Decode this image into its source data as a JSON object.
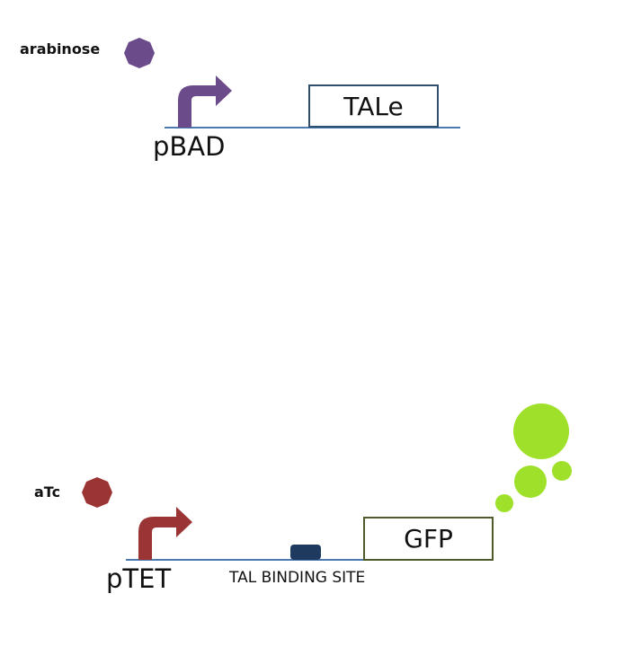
{
  "top_construct": {
    "inducer_label": "arabinose",
    "promoter_label": "pBAD",
    "gene_label": "TALe"
  },
  "bottom_construct": {
    "inducer_label": "aTc",
    "promoter_label": "pTET",
    "binding_site_label": "TAL BINDING SITE",
    "gene_label": "GFP"
  },
  "colors": {
    "arabinose": "#6b4b8a",
    "pbad_arrow": "#6b4b8a",
    "atc": "#9b3535",
    "ptet_arrow": "#9b3535",
    "dna_line": "#4a7ab0",
    "tale_box_border": "#2f4f6f",
    "gfp_box_border": "#4f5a2a",
    "binding_site": "#1f3a5f",
    "gfp_glow": "#9ee02a"
  }
}
